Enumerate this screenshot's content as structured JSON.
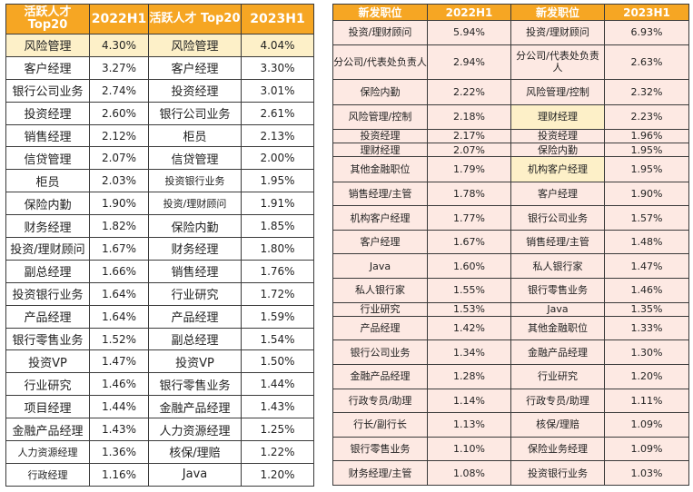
{
  "left": {
    "headers": {
      "label1": "活跃人才 Top20",
      "year1": "2022H1",
      "label2": "活跃人才 Top20",
      "year2": "2023H1"
    },
    "rows": [
      {
        "a": "风险管理",
        "av": "4.30%",
        "b": "风险管理",
        "bv": "4.04%"
      },
      {
        "a": "客户经理",
        "av": "3.27%",
        "b": "客户经理",
        "bv": "3.30%"
      },
      {
        "a": "银行公司业务",
        "av": "2.74%",
        "b": "投资经理",
        "bv": "3.01%"
      },
      {
        "a": "投资经理",
        "av": "2.60%",
        "b": "银行公司业务",
        "bv": "2.61%"
      },
      {
        "a": "销售经理",
        "av": "2.12%",
        "b": "柜员",
        "bv": "2.13%"
      },
      {
        "a": "信贷管理",
        "av": "2.07%",
        "b": "信贷管理",
        "bv": "2.00%"
      },
      {
        "a": "柜员",
        "av": "2.03%",
        "b": "投资银行业务",
        "bv": "1.95%"
      },
      {
        "a": "保险内勤",
        "av": "1.90%",
        "b": "投资/理财顾问",
        "bv": "1.91%"
      },
      {
        "a": "财务经理",
        "av": "1.82%",
        "b": "保险内勤",
        "bv": "1.85%"
      },
      {
        "a": "投资/理财顾问",
        "av": "1.67%",
        "b": "财务经理",
        "bv": "1.80%"
      },
      {
        "a": "副总经理",
        "av": "1.66%",
        "b": "销售经理",
        "bv": "1.76%"
      },
      {
        "a": "投资银行业务",
        "av": "1.64%",
        "b": "行业研究",
        "bv": "1.72%"
      },
      {
        "a": "产品经理",
        "av": "1.64%",
        "b": "产品经理",
        "bv": "1.59%"
      },
      {
        "a": "银行零售业务",
        "av": "1.52%",
        "b": "副总经理",
        "bv": "1.54%"
      },
      {
        "a": "投资VP",
        "av": "1.47%",
        "b": "投资VP",
        "bv": "1.50%"
      },
      {
        "a": "行业研究",
        "av": "1.46%",
        "b": "银行零售业务",
        "bv": "1.44%"
      },
      {
        "a": "项目经理",
        "av": "1.44%",
        "b": "金融产品经理",
        "bv": "1.43%"
      },
      {
        "a": "金融产品经理",
        "av": "1.43%",
        "b": "人力资源经理",
        "bv": "1.25%"
      },
      {
        "a": "人力资源经理",
        "av": "1.36%",
        "b": "核保/理赔",
        "bv": "1.22%"
      },
      {
        "a": "行政经理",
        "av": "1.16%",
        "b": "Java",
        "bv": "1.20%"
      }
    ]
  },
  "right": {
    "headers": {
      "label1": "新发职位",
      "year1": "2022H1",
      "label2": "新发职位",
      "year2": "2023H1"
    },
    "rows": [
      {
        "a": "投资/理财顾问",
        "av": "5.94%",
        "b": "投资/理财顾问",
        "bv": "6.93%"
      },
      {
        "a": "分公司/代表处负责人",
        "av": "2.94%",
        "b": "分公司/代表处负责人",
        "bv": "2.63%"
      },
      {
        "a": "保险内勤",
        "av": "2.22%",
        "b": "风险管理/控制",
        "bv": "2.32%"
      },
      {
        "a": "风险管理/控制",
        "av": "2.18%",
        "b": "理财经理",
        "bv": "2.23%"
      },
      {
        "a": "投资经理",
        "av": "2.17%",
        "b": "投资经理",
        "bv": "1.96%"
      },
      {
        "a": "理财经理",
        "av": "2.07%",
        "b": "保险内勤",
        "bv": "1.95%"
      },
      {
        "a": "其他金融职位",
        "av": "1.79%",
        "b": "机构客户经理",
        "bv": "1.95%"
      },
      {
        "a": "销售经理/主管",
        "av": "1.78%",
        "b": "客户经理",
        "bv": "1.90%"
      },
      {
        "a": "机构客户经理",
        "av": "1.77%",
        "b": "银行公司业务",
        "bv": "1.57%"
      },
      {
        "a": "客户经理",
        "av": "1.67%",
        "b": "销售经理/主管",
        "bv": "1.48%"
      },
      {
        "a": "Java",
        "av": "1.60%",
        "b": "私人银行家",
        "bv": "1.47%"
      },
      {
        "a": "私人银行家",
        "av": "1.55%",
        "b": "银行零售业务",
        "bv": "1.46%"
      },
      {
        "a": "行业研究",
        "av": "1.53%",
        "b": "Java",
        "bv": "1.35%"
      },
      {
        "a": "产品经理",
        "av": "1.42%",
        "b": "其他金融职位",
        "bv": "1.33%"
      },
      {
        "a": "银行公司业务",
        "av": "1.34%",
        "b": "金融产品经理",
        "bv": "1.30%"
      },
      {
        "a": "金融产品经理",
        "av": "1.28%",
        "b": "行业研究",
        "bv": "1.20%"
      },
      {
        "a": "行政专员/助理",
        "av": "1.14%",
        "b": "行政专员/助理",
        "bv": "1.11%"
      },
      {
        "a": "行长/副行长",
        "av": "1.13%",
        "b": "核保/理赔",
        "bv": "1.09%"
      },
      {
        "a": "银行零售业务",
        "av": "1.10%",
        "b": "保险业务经理",
        "bv": "1.09%"
      },
      {
        "a": "财务经理/主管",
        "av": "1.08%",
        "b": "投资银行业务",
        "bv": "1.03%"
      }
    ]
  }
}
